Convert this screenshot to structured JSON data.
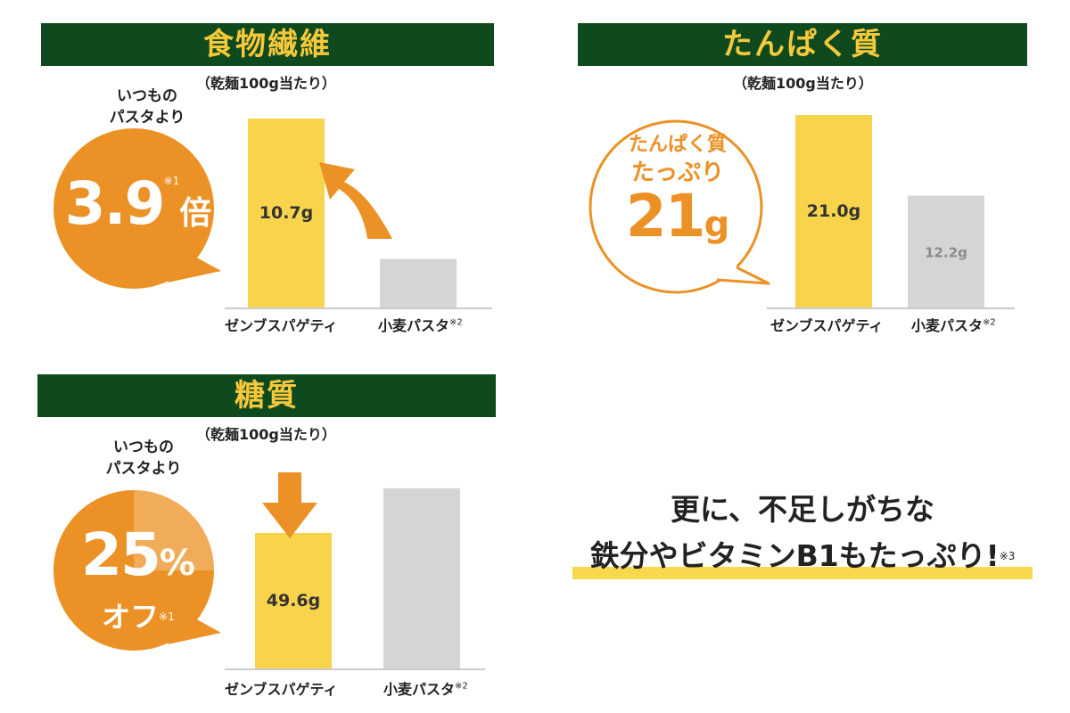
{
  "panels": {
    "fiber": {
      "title": "食物繊維",
      "unit_note": "（乾麺100g当たり）",
      "lead_line1": "いつもの",
      "lead_line2": "パスタより",
      "badge_value": "3.9",
      "badge_unit": "倍",
      "badge_note": "※1"
    },
    "protein": {
      "title": "たんぱく質",
      "unit_note": "（乾麺100g当たり）",
      "badge_line1": "たんぱく質",
      "badge_line2": "たっぷり",
      "badge_value": "21",
      "badge_unit": "g"
    },
    "carb": {
      "title": "糖質",
      "unit_note": "（乾麺100g当たり）",
      "lead_line1": "いつもの",
      "lead_line2": "パスタより",
      "badge_value": "25",
      "badge_unit": "%",
      "badge_line2": "オフ",
      "badge_note": "※1"
    }
  },
  "categories": [
    "ゼンブスパゲティ",
    "小麦パスタ"
  ],
  "category_note": "※2",
  "closing": {
    "line1": "更に、不足しがちな",
    "line2": "鉄分やビタミンB1もたっぷり!",
    "note": "※3"
  },
  "colors": {
    "banner_bg": "#0f4a1f",
    "banner_text": "#f6c83a",
    "bar_zenb": "#f8d44c",
    "bar_wheat": "#d3d6d4",
    "accent_orange": "#ec9125",
    "underline": "#f8d84c"
  },
  "chart_data": [
    {
      "type": "bar",
      "title": "食物繊維",
      "categories": [
        "ゼンブスパゲティ",
        "小麦パスタ"
      ],
      "values": [
        10.7,
        2.75
      ],
      "labels": [
        "10.7g",
        ""
      ],
      "unit": "g"
    },
    {
      "type": "bar",
      "title": "たんぱく質",
      "categories": [
        "ゼンブスパゲティ",
        "小麦パスタ"
      ],
      "values": [
        21.0,
        12.2
      ],
      "labels": [
        "21.0g",
        "12.2g"
      ],
      "unit": "g"
    },
    {
      "type": "bar",
      "title": "糖質",
      "categories": [
        "ゼンブスパゲティ",
        "小麦パスタ"
      ],
      "values": [
        49.6,
        66.0
      ],
      "labels": [
        "49.6g",
        ""
      ],
      "unit": "g"
    }
  ]
}
